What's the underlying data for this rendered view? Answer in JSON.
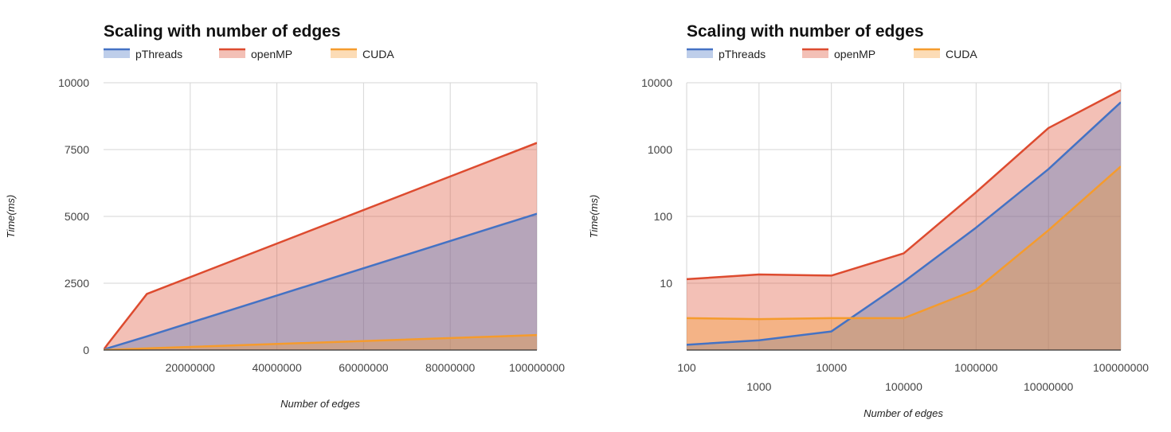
{
  "chart_data": [
    {
      "type": "area",
      "title": "Scaling with number of edges",
      "xlabel": "Number of edges",
      "ylabel": "Time(ms)",
      "x_scale": "linear",
      "y_scale": "linear",
      "xlim": [
        0,
        100000000
      ],
      "ylim": [
        0,
        10000
      ],
      "x_ticks": [
        20000000,
        40000000,
        60000000,
        80000000,
        100000000
      ],
      "x_tick_labels": [
        "20000000",
        "40000000",
        "60000000",
        "80000000",
        "100000000"
      ],
      "y_ticks": [
        0,
        2500,
        5000,
        7500,
        10000
      ],
      "y_tick_labels": [
        "0",
        "2500",
        "5000",
        "7500",
        "10000"
      ],
      "grid": true,
      "legend": "top-left",
      "x": [
        100,
        1000,
        10000,
        100000,
        1000000,
        10000000,
        100000000
      ],
      "series": [
        {
          "name": "pThreads",
          "color": "#4472c4",
          "values": [
            1.2,
            1.4,
            1.9,
            10.5,
            68,
            510,
            5100
          ]
        },
        {
          "name": "openMP",
          "color": "#dd4b2f",
          "values": [
            11.5,
            13.5,
            13,
            28,
            230,
            2100,
            7750
          ]
        },
        {
          "name": "CUDA",
          "color": "#f59b2d",
          "values": [
            3,
            2.9,
            3,
            3,
            8,
            62,
            560
          ]
        }
      ]
    },
    {
      "type": "area",
      "title": "Scaling with number of edges",
      "xlabel": "Number of edges",
      "ylabel": "Time(ms)",
      "x_scale": "log",
      "y_scale": "log",
      "xlim": [
        100,
        100000000
      ],
      "ylim": [
        1,
        10000
      ],
      "x_ticks": [
        100,
        1000,
        10000,
        100000,
        1000000,
        10000000,
        100000000
      ],
      "x_tick_labels": [
        "100",
        "1000",
        "10000",
        "100000",
        "1000000",
        "10000000",
        "100000000"
      ],
      "y_ticks": [
        10,
        100,
        1000,
        10000
      ],
      "y_tick_labels": [
        "10",
        "100",
        "1000",
        "10000"
      ],
      "grid": true,
      "legend": "top-left",
      "x": [
        100,
        1000,
        10000,
        100000,
        1000000,
        10000000,
        100000000
      ],
      "series": [
        {
          "name": "pThreads",
          "color": "#4472c4",
          "values": [
            1.2,
            1.4,
            1.9,
            10.5,
            68,
            510,
            5100
          ]
        },
        {
          "name": "openMP",
          "color": "#dd4b2f",
          "values": [
            11.5,
            13.5,
            13,
            28,
            230,
            2100,
            7750
          ]
        },
        {
          "name": "CUDA",
          "color": "#f59b2d",
          "values": [
            3,
            2.9,
            3,
            3,
            8,
            62,
            560
          ]
        }
      ]
    }
  ]
}
